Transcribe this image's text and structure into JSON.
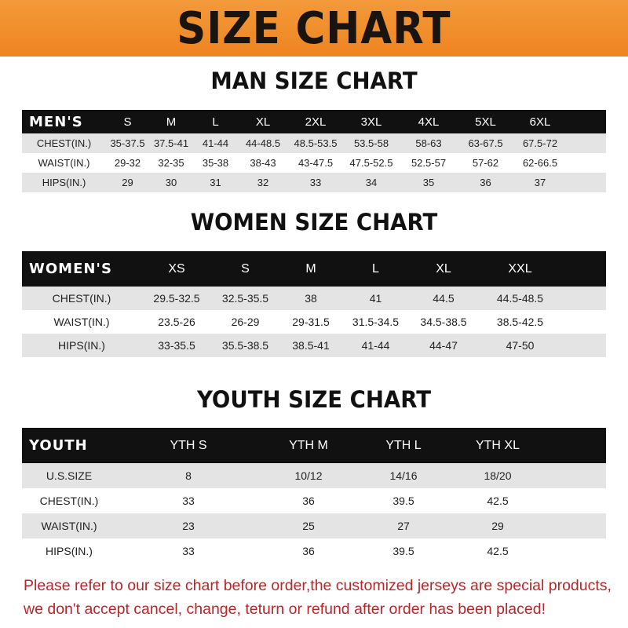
{
  "banner": {
    "title": "SIZE CHART",
    "color": "#ef8a26"
  },
  "men": {
    "title": "MAN SIZE CHART",
    "header": "MEN'S",
    "sizes": [
      "S",
      "M",
      "L",
      "XL",
      "2XL",
      "3XL",
      "4XL",
      "5XL",
      "6XL"
    ],
    "rows": [
      {
        "label": "CHEST(IN.)",
        "values": [
          "35-37.5",
          "37.5-41",
          "41-44",
          "44-48.5",
          "48.5-53.5",
          "53.5-58",
          "58-63",
          "63-67.5",
          "67.5-72"
        ]
      },
      {
        "label": "WAIST(IN.)",
        "values": [
          "29-32",
          "32-35",
          "35-38",
          "38-43",
          "43-47.5",
          "47.5-52.5",
          "52.5-57",
          "57-62",
          "62-66.5"
        ]
      },
      {
        "label": "HIPS(IN.)",
        "values": [
          "29",
          "30",
          "31",
          "32",
          "33",
          "34",
          "35",
          "36",
          "37"
        ]
      }
    ]
  },
  "women": {
    "title": "WOMEN SIZE CHART",
    "header": "WOMEN'S",
    "sizes": [
      "XS",
      "S",
      "M",
      "L",
      "XL",
      "XXL"
    ],
    "rows": [
      {
        "label": "CHEST(IN.)",
        "values": [
          "29.5-32.5",
          "32.5-35.5",
          "38",
          "41",
          "44.5",
          "44.5-48.5"
        ]
      },
      {
        "label": "WAIST(IN.)",
        "values": [
          "23.5-26",
          "26-29",
          "29-31.5",
          "31.5-34.5",
          "34.5-38.5",
          "38.5-42.5"
        ]
      },
      {
        "label": "HIPS(IN.)",
        "values": [
          "33-35.5",
          "35.5-38.5",
          "38.5-41",
          "41-44",
          "44-47",
          "47-50"
        ]
      }
    ]
  },
  "youth": {
    "title": "YOUTH SIZE CHART",
    "header": "YOUTH",
    "sizes": [
      "YTH S",
      "YTH M",
      "YTH L",
      "YTH XL"
    ],
    "rows": [
      {
        "label": "U.S.SIZE",
        "values": [
          "8",
          "10/12",
          "14/16",
          "18/20"
        ]
      },
      {
        "label": "CHEST(IN.)",
        "values": [
          "33",
          "36",
          "39.5",
          "42.5"
        ]
      },
      {
        "label": "WAIST(IN.)",
        "values": [
          "23",
          "25",
          "27",
          "29"
        ]
      },
      {
        "label": "HIPS(IN.)",
        "values": [
          "33",
          "36",
          "39.5",
          "42.5"
        ]
      }
    ]
  },
  "notice": {
    "line1": "Please refer to our size chart before order,the customized jerseys are special products,",
    "line2": "we don't accept cancel, change, teturn or refund after order has been placed!",
    "color": "#b8262a"
  }
}
